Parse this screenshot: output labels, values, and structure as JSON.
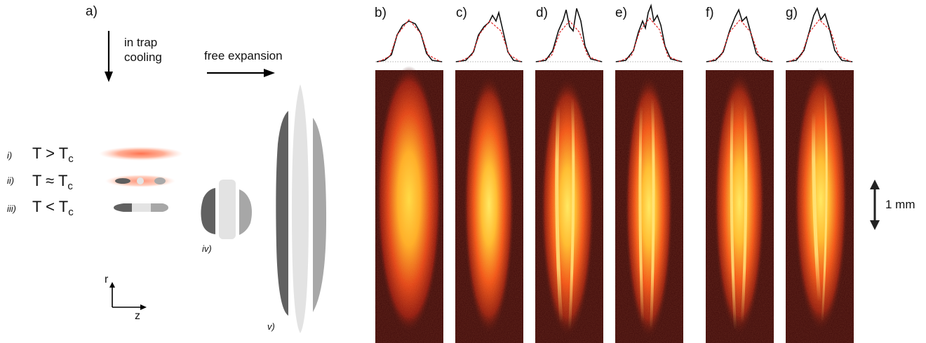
{
  "figure": {
    "panel_labels": [
      "a)",
      "b)",
      "c)",
      "d)",
      "e)",
      "f)",
      "g)"
    ],
    "arrow_labels": {
      "in_trap_cooling": [
        "in trap",
        "cooling"
      ],
      "free_expansion": "free expansion"
    },
    "conditions": [
      {
        "roman": "i)",
        "lhs": "T",
        "op": ">",
        "rhs": "T",
        "sub": "c"
      },
      {
        "roman": "ii)",
        "lhs": "T",
        "op": "≈",
        "rhs": "T",
        "sub": "c"
      },
      {
        "roman": "iii)",
        "lhs": "T",
        "op": "<",
        "rhs": "T",
        "sub": "c"
      }
    ],
    "stage_labels": {
      "iv": "iv)",
      "v": "v)"
    },
    "axes": {
      "r": "r",
      "z": "z"
    },
    "scale_bar": "1 mm",
    "colors": {
      "thermal": "#ff7a55",
      "dark_gray": "#606060",
      "mid_gray": "#a8a8a8",
      "light_gray": "#e2e2e2",
      "image_bg": "#3a0606",
      "profile_fit": "#e02020"
    }
  }
}
